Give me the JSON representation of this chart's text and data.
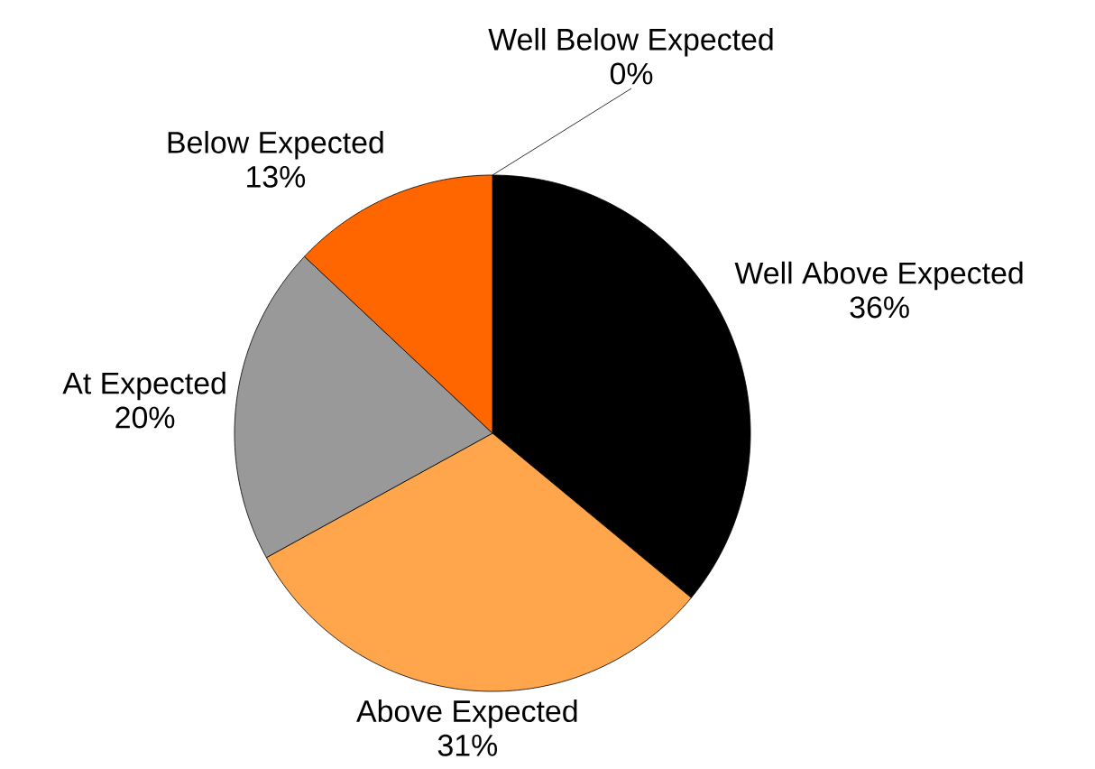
{
  "chart_data": {
    "type": "pie",
    "categories": [
      "Well Above Expected",
      "Above Expected",
      "At Expected",
      "Below Expected",
      "Well Below  Expected"
    ],
    "values": [
      36,
      31,
      20,
      13,
      0
    ],
    "value_labels": [
      "36%",
      "31%",
      "20%",
      "13%",
      "0%"
    ],
    "colors": [
      "#000000",
      "#ffa64d",
      "#999999",
      "#ff6600",
      "#cc0000"
    ]
  }
}
